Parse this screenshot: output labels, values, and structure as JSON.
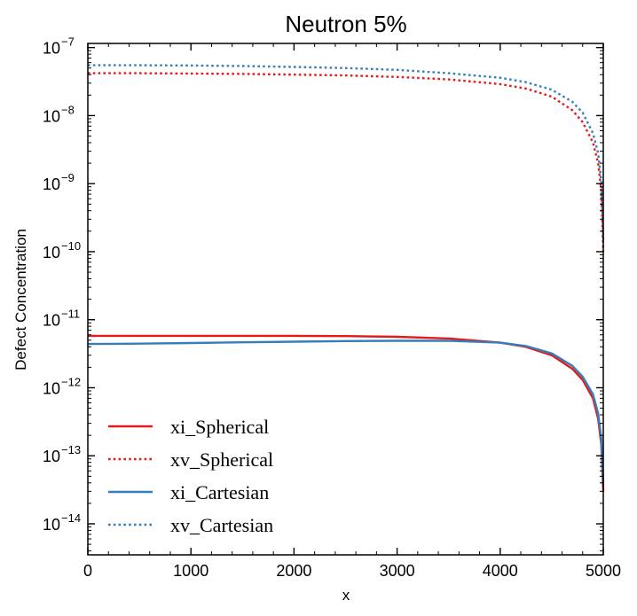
{
  "chart_data": {
    "type": "line",
    "title": "Neutron 5%",
    "xlabel": "x",
    "ylabel": "Defect Concentration",
    "xlim": [
      0,
      5000
    ],
    "ylim": [
      3.5e-15,
      1.15e-07
    ],
    "yscale": "log",
    "xticks": [
      "0",
      "1000",
      "2000",
      "3000",
      "4000",
      "5000"
    ],
    "yticks": [
      {
        "base": "10",
        "exp": "−14",
        "value": 1e-14
      },
      {
        "base": "10",
        "exp": "−13",
        "value": 1e-13
      },
      {
        "base": "10",
        "exp": "−12",
        "value": 1e-12
      },
      {
        "base": "10",
        "exp": "−11",
        "value": 1e-11
      },
      {
        "base": "10",
        "exp": "−10",
        "value": 1e-10
      },
      {
        "base": "10",
        "exp": "−9",
        "value": 1e-09
      },
      {
        "base": "10",
        "exp": "−8",
        "value": 1e-08
      },
      {
        "base": "10",
        "exp": "−7",
        "value": 1e-07
      }
    ],
    "legend_position": "lower-left",
    "series": [
      {
        "name": "xi_Spherical",
        "color": "#e41a1c",
        "style": "solid",
        "x": [
          0,
          500,
          1000,
          1500,
          2000,
          2500,
          3000,
          3500,
          4000,
          4250,
          4500,
          4700,
          4800,
          4900,
          4950,
          4980,
          5000
        ],
        "y": [
          5.8e-12,
          5.8e-12,
          5.8e-12,
          5.8e-12,
          5.8e-12,
          5.75e-12,
          5.6e-12,
          5.3e-12,
          4.6e-12,
          4e-12,
          3e-12,
          1.9e-12,
          1.3e-12,
          7e-13,
          3.5e-13,
          1.5e-13,
          3e-14
        ]
      },
      {
        "name": "xv_Spherical",
        "color": "#e41a1c",
        "style": "dotted",
        "x": [
          0,
          500,
          1000,
          1500,
          2000,
          2500,
          3000,
          3500,
          4000,
          4250,
          4500,
          4700,
          4800,
          4900,
          4950,
          4980,
          5000
        ],
        "y": [
          4.2e-08,
          4.2e-08,
          4.15e-08,
          4.1e-08,
          4e-08,
          3.9e-08,
          3.7e-08,
          3.4e-08,
          2.9e-08,
          2.5e-08,
          1.9e-08,
          1.2e-08,
          8e-09,
          4e-09,
          2e-09,
          8e-10,
          1e-10
        ]
      },
      {
        "name": "xi_Cartesian",
        "color": "#377eb8",
        "style": "solid",
        "x": [
          0,
          500,
          1000,
          1500,
          2000,
          2500,
          3000,
          3500,
          4000,
          4250,
          4500,
          4700,
          4800,
          4900,
          4950,
          4980,
          5000
        ],
        "y": [
          4.4e-12,
          4.45e-12,
          4.55e-12,
          4.65e-12,
          4.75e-12,
          4.85e-12,
          4.9e-12,
          4.9e-12,
          4.6e-12,
          4.1e-12,
          3.2e-12,
          2.1e-12,
          1.45e-12,
          8e-13,
          4.2e-13,
          1.8e-13,
          4e-14
        ]
      },
      {
        "name": "xv_Cartesian",
        "color": "#377eb8",
        "style": "dotted",
        "x": [
          0,
          500,
          1000,
          1500,
          2000,
          2500,
          3000,
          3500,
          4000,
          4250,
          4500,
          4700,
          4800,
          4900,
          4950,
          4980,
          5000
        ],
        "y": [
          5.5e-08,
          5.5e-08,
          5.45e-08,
          5.35e-08,
          5.2e-08,
          5e-08,
          4.7e-08,
          4.2e-08,
          3.6e-08,
          3.1e-08,
          2.4e-08,
          1.6e-08,
          1.1e-08,
          5.5e-09,
          2.8e-09,
          1.1e-09,
          1.5e-10
        ]
      }
    ]
  }
}
